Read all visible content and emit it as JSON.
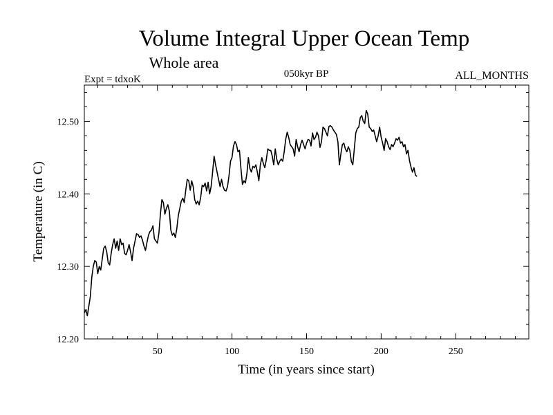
{
  "chart_data": {
    "type": "line",
    "title": "Volume Integral Upper Ocean Temp",
    "subtitle": "Whole area",
    "annotations": {
      "experiment": "Expt = tdxoK",
      "period": "050kyr BP",
      "months": "ALL_MONTHS"
    },
    "xlabel": "Time (in years since start)",
    "ylabel": "Temperature (in C)",
    "xlim": [
      1,
      299
    ],
    "ylim": [
      12.2,
      12.55
    ],
    "x_ticks": [
      50,
      100,
      150,
      200,
      250
    ],
    "y_ticks": [
      12.2,
      12.3,
      12.4,
      12.5
    ],
    "y_tick_labels": [
      "12.20",
      "12.30",
      "12.40",
      "12.50"
    ],
    "grid": false,
    "series": [
      {
        "name": "Volume Integral Upper Ocean Temp",
        "x_start": 1,
        "x_step": 1,
        "values": [
          12.236,
          12.24,
          12.232,
          12.245,
          12.258,
          12.285,
          12.3,
          12.308,
          12.306,
          12.29,
          12.3,
          12.295,
          12.31,
          12.325,
          12.328,
          12.32,
          12.305,
          12.302,
          12.318,
          12.33,
          12.338,
          12.325,
          12.335,
          12.322,
          12.338,
          12.33,
          12.332,
          12.318,
          12.316,
          12.322,
          12.33,
          12.32,
          12.308,
          12.325,
          12.335,
          12.345,
          12.344,
          12.34,
          12.342,
          12.336,
          12.328,
          12.322,
          12.333,
          12.343,
          12.348,
          12.35,
          12.356,
          12.338,
          12.335,
          12.332,
          12.346,
          12.372,
          12.392,
          12.388,
          12.372,
          12.38,
          12.385,
          12.376,
          12.35,
          12.343,
          12.346,
          12.34,
          12.352,
          12.37,
          12.38,
          12.39,
          12.394,
          12.388,
          12.405,
          12.42,
          12.418,
          12.405,
          12.418,
          12.41,
          12.392,
          12.386,
          12.39,
          12.385,
          12.395,
          12.412,
          12.41,
          12.415,
          12.404,
          12.416,
          12.4,
          12.41,
          12.43,
          12.452,
          12.44,
          12.43,
          12.42,
          12.41,
          12.42,
          12.41,
          12.405,
          12.404,
          12.41,
          12.425,
          12.445,
          12.45,
          12.466,
          12.472,
          12.468,
          12.458,
          12.46,
          12.435,
          12.413,
          12.418,
          12.415,
          12.428,
          12.45,
          12.435,
          12.43,
          12.438,
          12.436,
          12.44,
          12.43,
          12.418,
          12.44,
          12.45,
          12.442,
          12.436,
          12.447,
          12.462,
          12.46,
          12.46,
          12.452,
          12.44,
          12.462,
          12.448,
          12.44,
          12.445,
          12.448,
          12.445,
          12.458,
          12.475,
          12.485,
          12.478,
          12.468,
          12.465,
          12.462,
          12.452,
          12.475,
          12.465,
          12.458,
          12.468,
          12.474,
          12.468,
          12.462,
          12.47,
          12.475,
          12.474,
          12.466,
          12.484,
          12.475,
          12.478,
          12.485,
          12.48,
          12.464,
          12.472,
          12.492,
          12.49,
          12.485,
          12.48,
          12.493,
          12.494,
          12.492,
          12.488,
          12.485,
          12.482,
          12.472,
          12.44,
          12.455,
          12.468,
          12.47,
          12.462,
          12.458,
          12.465,
          12.46,
          12.445,
          12.44,
          12.462,
          12.484,
          12.49,
          12.492,
          12.505,
          12.508,
          12.5,
          12.497,
          12.515,
          12.51,
          12.492,
          12.49,
          12.486,
          12.488,
          12.48,
          12.472,
          12.48,
          12.492,
          12.478,
          12.47,
          12.46,
          12.476,
          12.472,
          12.465,
          12.461,
          12.468,
          12.465,
          12.47,
          12.476,
          12.474,
          12.478,
          12.47,
          12.472,
          12.465,
          12.468,
          12.455,
          12.46,
          12.446,
          12.437,
          12.43,
          12.436,
          12.426,
          12.424
        ]
      }
    ]
  }
}
